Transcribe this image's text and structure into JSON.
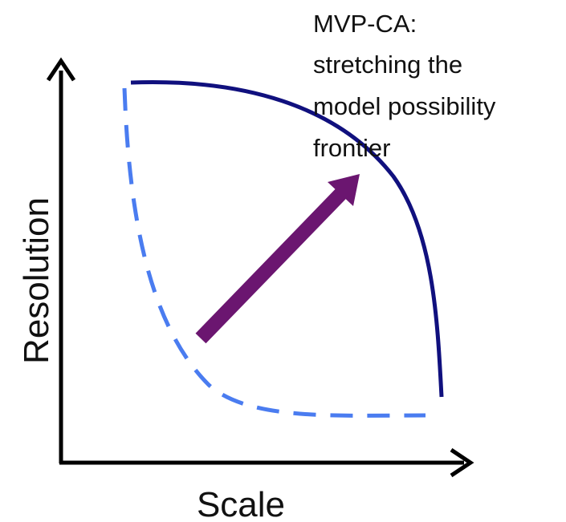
{
  "annotation": [
    "MVP-CA:",
    "stretching the",
    "model possibility",
    "frontier"
  ],
  "y_axis_label": "Resolution",
  "x_axis_label": "Scale"
}
